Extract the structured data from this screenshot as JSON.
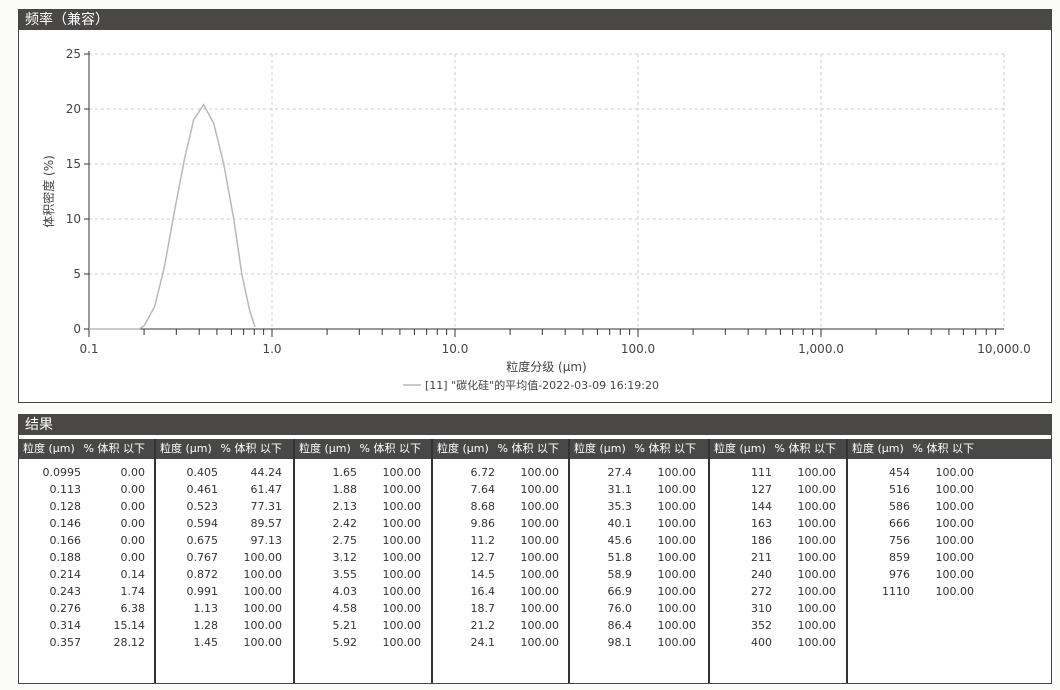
{
  "chart_panel": {
    "title": "频率（兼容）"
  },
  "chart_data": {
    "type": "line",
    "xscale": "log",
    "xlim": [
      0.1,
      10000
    ],
    "ylim": [
      0,
      25
    ],
    "xticks": [
      "0.1",
      "1.0",
      "10.0",
      "100.0",
      "1,000.0",
      "10,000.0"
    ],
    "yticks": [
      "0",
      "5",
      "10",
      "15",
      "20",
      "25"
    ],
    "xlabel": "粒度分级 (μm)",
    "ylabel": "体积密度 (%)",
    "grid": true,
    "legend": "[11] \"碳化硅\"的平均值-2022-03-09 16:19:20",
    "legend_position": "bottom",
    "series": [
      {
        "color": "#b8b8b8",
        "x": [
          0.1,
          0.188,
          0.2,
          0.228,
          0.258,
          0.293,
          0.333,
          0.373,
          0.423,
          0.48,
          0.545,
          0.618,
          0.684,
          0.757,
          0.807
        ],
        "y": [
          0,
          0,
          0.3,
          2,
          5.6,
          10.7,
          15.5,
          19,
          20.4,
          18.7,
          15,
          10,
          5,
          1.6,
          0.2
        ]
      }
    ]
  },
  "results": {
    "title": "结果",
    "col_size": "粒度 (μm)",
    "col_pct": "% 体积 以下",
    "groups": [
      [
        [
          "0.0995",
          "0.00"
        ],
        [
          "0.113",
          "0.00"
        ],
        [
          "0.128",
          "0.00"
        ],
        [
          "0.146",
          "0.00"
        ],
        [
          "0.166",
          "0.00"
        ],
        [
          "0.188",
          "0.00"
        ],
        [
          "0.214",
          "0.14"
        ],
        [
          "0.243",
          "1.74"
        ],
        [
          "0.276",
          "6.38"
        ],
        [
          "0.314",
          "15.14"
        ],
        [
          "0.357",
          "28.12"
        ]
      ],
      [
        [
          "0.405",
          "44.24"
        ],
        [
          "0.461",
          "61.47"
        ],
        [
          "0.523",
          "77.31"
        ],
        [
          "0.594",
          "89.57"
        ],
        [
          "0.675",
          "97.13"
        ],
        [
          "0.767",
          "100.00"
        ],
        [
          "0.872",
          "100.00"
        ],
        [
          "0.991",
          "100.00"
        ],
        [
          "1.13",
          "100.00"
        ],
        [
          "1.28",
          "100.00"
        ],
        [
          "1.45",
          "100.00"
        ]
      ],
      [
        [
          "1.65",
          "100.00"
        ],
        [
          "1.88",
          "100.00"
        ],
        [
          "2.13",
          "100.00"
        ],
        [
          "2.42",
          "100.00"
        ],
        [
          "2.75",
          "100.00"
        ],
        [
          "3.12",
          "100.00"
        ],
        [
          "3.55",
          "100.00"
        ],
        [
          "4.03",
          "100.00"
        ],
        [
          "4.58",
          "100.00"
        ],
        [
          "5.21",
          "100.00"
        ],
        [
          "5.92",
          "100.00"
        ]
      ],
      [
        [
          "6.72",
          "100.00"
        ],
        [
          "7.64",
          "100.00"
        ],
        [
          "8.68",
          "100.00"
        ],
        [
          "9.86",
          "100.00"
        ],
        [
          "11.2",
          "100.00"
        ],
        [
          "12.7",
          "100.00"
        ],
        [
          "14.5",
          "100.00"
        ],
        [
          "16.4",
          "100.00"
        ],
        [
          "18.7",
          "100.00"
        ],
        [
          "21.2",
          "100.00"
        ],
        [
          "24.1",
          "100.00"
        ]
      ],
      [
        [
          "27.4",
          "100.00"
        ],
        [
          "31.1",
          "100.00"
        ],
        [
          "35.3",
          "100.00"
        ],
        [
          "40.1",
          "100.00"
        ],
        [
          "45.6",
          "100.00"
        ],
        [
          "51.8",
          "100.00"
        ],
        [
          "58.9",
          "100.00"
        ],
        [
          "66.9",
          "100.00"
        ],
        [
          "76.0",
          "100.00"
        ],
        [
          "86.4",
          "100.00"
        ],
        [
          "98.1",
          "100.00"
        ]
      ],
      [
        [
          "111",
          "100.00"
        ],
        [
          "127",
          "100.00"
        ],
        [
          "144",
          "100.00"
        ],
        [
          "163",
          "100.00"
        ],
        [
          "186",
          "100.00"
        ],
        [
          "211",
          "100.00"
        ],
        [
          "240",
          "100.00"
        ],
        [
          "272",
          "100.00"
        ],
        [
          "310",
          "100.00"
        ],
        [
          "352",
          "100.00"
        ],
        [
          "400",
          "100.00"
        ]
      ],
      [
        [
          "454",
          "100.00"
        ],
        [
          "516",
          "100.00"
        ],
        [
          "586",
          "100.00"
        ],
        [
          "666",
          "100.00"
        ],
        [
          "756",
          "100.00"
        ],
        [
          "859",
          "100.00"
        ],
        [
          "976",
          "100.00"
        ],
        [
          "1110",
          "100.00"
        ]
      ]
    ]
  }
}
